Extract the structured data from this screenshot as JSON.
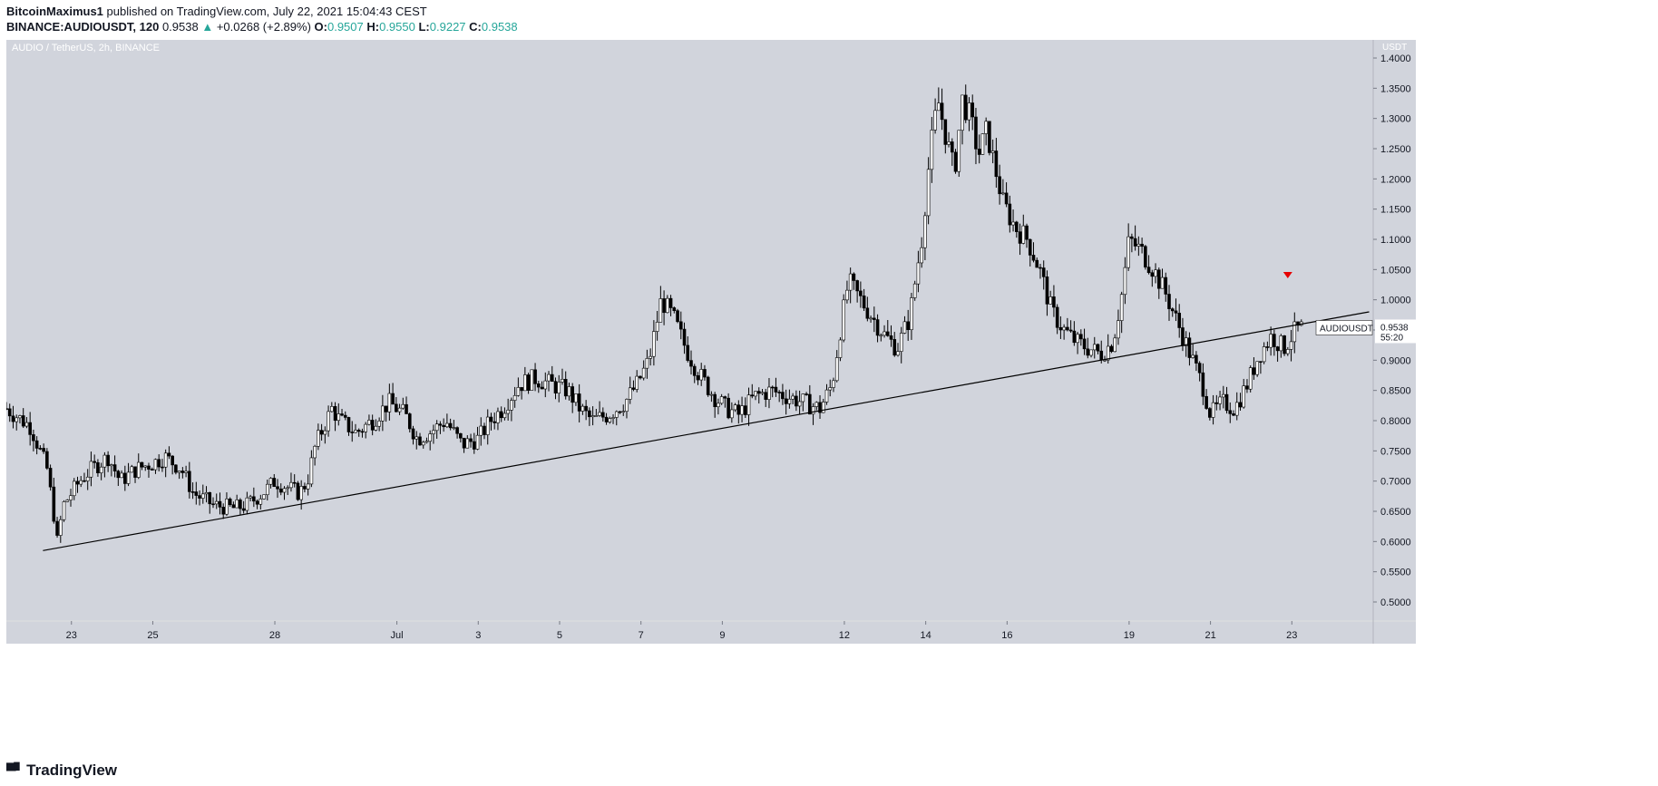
{
  "header": {
    "author": "BitcoinMaximus1",
    "published": "published on TradingView.com, July 22, 2021 15:04:43 CEST",
    "symbol_full": "BINANCE:AUDIOUSDT, 120",
    "last": "0.9538",
    "change_arrow": "▲",
    "change": "+0.0268 (+2.89%)",
    "o_label": "O:",
    "o": "0.9507",
    "h_label": "H:",
    "h": "0.9550",
    "l_label": "L:",
    "l": "0.9227",
    "c_label": "C:",
    "c": "0.9538"
  },
  "footer": {
    "brand": "TradingView"
  },
  "colors": {
    "plot_bg": "#d1d4dc",
    "candle": "#000000",
    "up_text": "#26a69a",
    "marker": "#e60000",
    "trendline": "#000000"
  },
  "chart_data": {
    "type": "candlestick",
    "title": "AUDIO / TetherUS, 2h, BINANCE",
    "currency": "USDT",
    "symbol_label": "AUDIOUSDT",
    "last_price": "0.9538",
    "countdown": "55:20",
    "ylim": [
      0.47,
      1.43
    ],
    "y_ticks": [
      "1.4000",
      "1.3500",
      "1.3000",
      "1.2500",
      "1.2000",
      "1.1500",
      "1.1000",
      "1.0500",
      "1.0000",
      "0.9500",
      "0.9000",
      "0.8500",
      "0.8000",
      "0.7500",
      "0.7000",
      "0.6500",
      "0.6000",
      "0.5500",
      "0.5000"
    ],
    "x_ticks": [
      "23",
      "25",
      "28",
      "Jul",
      "3",
      "5",
      "7",
      "9",
      "12",
      "14",
      "16",
      "19",
      "21",
      "23"
    ],
    "x_tick_days": [
      0,
      2,
      5,
      8,
      10,
      12,
      14,
      16,
      19,
      21,
      23,
      26,
      28,
      30
    ],
    "x_range_days": [
      -1.6,
      32.0
    ],
    "grid": false,
    "trendline": {
      "start": {
        "day": -0.7,
        "price": 0.585
      },
      "end": {
        "day": 31.9,
        "price": 0.98
      }
    },
    "marker": {
      "type": "triangle-down",
      "day": 29.9,
      "price": 1.04
    },
    "price_path": [
      [
        -1.6,
        0.82
      ],
      [
        -1.0,
        0.79
      ],
      [
        -0.6,
        0.72
      ],
      [
        -0.4,
        0.63
      ],
      [
        -0.35,
        0.6
      ],
      [
        -0.2,
        0.66
      ],
      [
        0.0,
        0.68
      ],
      [
        0.2,
        0.7
      ],
      [
        0.5,
        0.72
      ],
      [
        0.9,
        0.74
      ],
      [
        1.2,
        0.7
      ],
      [
        1.6,
        0.72
      ],
      [
        2.0,
        0.73
      ],
      [
        2.3,
        0.74
      ],
      [
        2.7,
        0.72
      ],
      [
        3.0,
        0.68
      ],
      [
        3.5,
        0.66
      ],
      [
        4.0,
        0.655
      ],
      [
        4.3,
        0.66
      ],
      [
        4.7,
        0.68
      ],
      [
        5.0,
        0.7
      ],
      [
        5.3,
        0.69
      ],
      [
        5.6,
        0.68
      ],
      [
        5.8,
        0.7
      ],
      [
        6.0,
        0.76
      ],
      [
        6.2,
        0.79
      ],
      [
        6.4,
        0.82
      ],
      [
        6.6,
        0.8
      ],
      [
        7.0,
        0.78
      ],
      [
        7.4,
        0.8
      ],
      [
        7.8,
        0.83
      ],
      [
        8.2,
        0.81
      ],
      [
        8.5,
        0.77
      ],
      [
        8.8,
        0.78
      ],
      [
        9.2,
        0.8
      ],
      [
        9.6,
        0.76
      ],
      [
        10.0,
        0.77
      ],
      [
        10.3,
        0.8
      ],
      [
        10.6,
        0.82
      ],
      [
        11.0,
        0.86
      ],
      [
        11.4,
        0.87
      ],
      [
        11.8,
        0.86
      ],
      [
        12.2,
        0.85
      ],
      [
        12.5,
        0.82
      ],
      [
        12.8,
        0.8
      ],
      [
        13.2,
        0.81
      ],
      [
        13.6,
        0.83
      ],
      [
        13.9,
        0.86
      ],
      [
        14.2,
        0.9
      ],
      [
        14.5,
        1.0
      ],
      [
        14.8,
        0.97
      ],
      [
        15.1,
        0.92
      ],
      [
        15.4,
        0.88
      ],
      [
        15.8,
        0.84
      ],
      [
        16.1,
        0.82
      ],
      [
        16.4,
        0.81
      ],
      [
        16.8,
        0.84
      ],
      [
        17.2,
        0.85
      ],
      [
        17.6,
        0.84
      ],
      [
        18.0,
        0.83
      ],
      [
        18.4,
        0.82
      ],
      [
        18.7,
        0.86
      ],
      [
        18.9,
        0.95
      ],
      [
        19.1,
        1.03
      ],
      [
        19.4,
        1.0
      ],
      [
        19.7,
        0.97
      ],
      [
        20.0,
        0.94
      ],
      [
        20.3,
        0.92
      ],
      [
        20.6,
        0.97
      ],
      [
        20.9,
        1.1
      ],
      [
        21.1,
        1.24
      ],
      [
        21.3,
        1.33
      ],
      [
        21.5,
        1.27
      ],
      [
        21.7,
        1.21
      ],
      [
        21.9,
        1.33
      ],
      [
        22.1,
        1.3
      ],
      [
        22.3,
        1.24
      ],
      [
        22.5,
        1.28
      ],
      [
        22.7,
        1.22
      ],
      [
        22.9,
        1.16
      ],
      [
        23.2,
        1.12
      ],
      [
        23.5,
        1.1
      ],
      [
        23.8,
        1.05
      ],
      [
        24.1,
        0.98
      ],
      [
        24.4,
        0.95
      ],
      [
        24.7,
        0.93
      ],
      [
        25.0,
        0.92
      ],
      [
        25.3,
        0.91
      ],
      [
        25.6,
        0.93
      ],
      [
        25.8,
        1.0
      ],
      [
        26.0,
        1.1
      ],
      [
        26.3,
        1.08
      ],
      [
        26.6,
        1.05
      ],
      [
        26.9,
        1.01
      ],
      [
        27.2,
        0.96
      ],
      [
        27.5,
        0.91
      ],
      [
        27.8,
        0.86
      ],
      [
        28.0,
        0.81
      ],
      [
        28.3,
        0.83
      ],
      [
        28.6,
        0.82
      ],
      [
        28.9,
        0.86
      ],
      [
        29.2,
        0.91
      ],
      [
        29.5,
        0.94
      ],
      [
        29.8,
        0.92
      ],
      [
        30.1,
        0.95
      ],
      [
        30.3,
        0.9538
      ]
    ]
  }
}
